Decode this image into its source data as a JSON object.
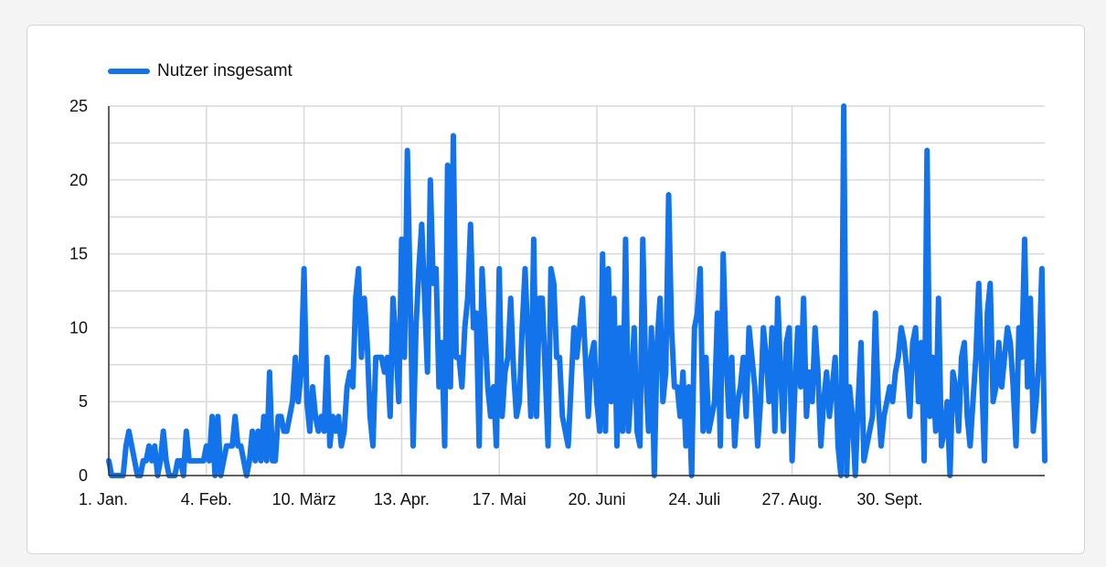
{
  "chart_data": {
    "type": "line",
    "title": "",
    "xlabel": "",
    "ylabel": "",
    "ylim": [
      0,
      25
    ],
    "yticks": [
      0,
      5,
      10,
      15,
      20,
      25
    ],
    "xtick_labels": [
      "1. Jan.",
      "4. Feb.",
      "10. März",
      "13. Apr.",
      "17. Mai",
      "20. Juni",
      "24. Juli",
      "27. Aug.",
      "30. Sept."
    ],
    "xtick_day_index": [
      0,
      34,
      68,
      102,
      136,
      170,
      204,
      238,
      272
    ],
    "grid": true,
    "legend_position": "top-left",
    "color": "#1273eb",
    "series": [
      {
        "name": "Nutzer insgesamt",
        "x_start_label": "1. Jan.",
        "values": [
          1,
          0,
          0,
          0,
          0,
          0,
          2,
          3,
          2,
          1,
          0,
          0,
          1,
          1,
          2,
          1,
          2,
          0,
          1,
          3,
          1,
          0,
          0,
          0,
          1,
          1,
          0,
          3,
          1,
          1,
          1,
          1,
          1,
          1,
          2,
          1,
          4,
          0,
          4,
          0,
          1,
          2,
          2,
          2,
          4,
          2,
          2,
          1,
          0,
          1,
          3,
          1,
          3,
          1,
          4,
          1,
          7,
          1,
          1,
          4,
          4,
          3,
          3,
          4,
          5,
          8,
          5,
          7,
          14,
          5,
          3,
          6,
          4,
          3,
          4,
          3,
          8,
          2,
          4,
          3,
          4,
          2,
          3,
          6,
          7,
          6,
          12,
          14,
          8,
          12,
          9,
          4,
          2,
          8,
          8,
          8,
          7,
          8,
          4,
          12,
          9,
          5,
          16,
          8,
          22,
          12,
          2,
          10,
          14,
          17,
          12,
          7,
          20,
          13,
          14,
          6,
          9,
          2,
          21,
          6,
          23,
          8,
          8,
          6,
          10,
          12,
          17,
          10,
          11,
          2,
          14,
          10,
          6,
          4,
          6,
          2,
          14,
          4,
          7,
          8,
          12,
          7,
          4,
          5,
          10,
          14,
          9,
          4,
          16,
          4,
          12,
          12,
          7,
          2,
          14,
          13,
          8,
          8,
          4,
          3,
          2,
          6,
          10,
          8,
          10,
          12,
          8,
          4,
          8,
          9,
          5,
          3,
          15,
          3,
          14,
          5,
          12,
          2,
          10,
          3,
          16,
          3,
          6,
          10,
          3,
          2,
          16,
          7,
          3,
          10,
          0,
          9,
          12,
          5,
          7,
          19,
          10,
          6,
          6,
          4,
          7,
          2,
          6,
          0,
          10,
          11,
          14,
          3,
          8,
          3,
          4,
          5,
          11,
          2,
          15,
          8,
          4,
          8,
          2,
          5,
          6,
          8,
          4,
          10,
          8,
          6,
          2,
          5,
          10,
          8,
          5,
          10,
          3,
          12,
          7,
          3,
          9,
          10,
          1,
          6,
          10,
          6,
          12,
          4,
          7,
          5,
          10,
          7,
          2,
          5,
          7,
          4,
          6,
          8,
          2,
          0,
          27,
          0,
          6,
          4,
          0,
          5,
          9,
          1,
          2,
          3,
          4,
          11,
          5,
          2,
          4,
          5,
          6,
          5,
          7,
          8,
          10,
          9,
          7,
          4,
          9,
          10,
          5,
          9,
          1,
          22,
          4,
          8,
          3,
          12,
          2,
          3,
          5,
          0,
          7,
          6,
          3,
          8,
          9,
          4,
          2,
          5,
          8,
          13,
          7,
          1,
          11,
          13,
          5,
          6,
          9,
          6,
          8,
          10,
          9,
          6,
          2,
          10,
          8,
          16,
          6,
          12,
          3,
          5,
          8,
          14,
          1
        ]
      }
    ]
  }
}
